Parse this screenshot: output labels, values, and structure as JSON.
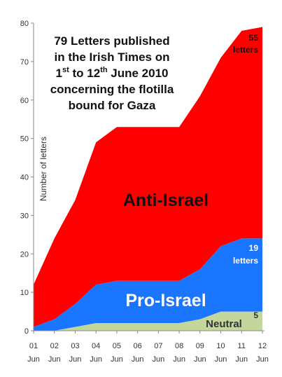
{
  "chart_data": {
    "type": "area",
    "stacked": true,
    "title_lines": [
      "79 Letters published",
      "in the Irish Times on",
      "1st to 12th June 2010",
      "concerning the flotilla",
      "bound for Gaza"
    ],
    "title_superscripts": {
      "line": 2,
      "parts": [
        "1",
        "st",
        " to 12",
        "th",
        " June 2010"
      ]
    },
    "ylabel": "Number of letters",
    "ylim": [
      0,
      80
    ],
    "yticks": [
      0,
      10,
      20,
      30,
      40,
      50,
      60,
      70,
      80
    ],
    "x_day": [
      "01",
      "02",
      "03",
      "04",
      "05",
      "06",
      "07",
      "08",
      "09",
      "10",
      "11",
      "12"
    ],
    "x_month": "Jun",
    "grid": false,
    "series": [
      {
        "name": "Neutral",
        "color": "#c3d69b",
        "values": [
          0,
          0,
          1,
          2,
          2,
          2,
          2,
          2,
          3,
          5,
          5,
          5
        ]
      },
      {
        "name": "Pro-Israel",
        "color": "#1a75ff",
        "values": [
          1,
          3,
          6,
          10,
          11,
          11,
          11,
          11,
          13,
          17,
          19,
          19
        ]
      },
      {
        "name": "Anti-Israel",
        "color": "#ff0000",
        "values": [
          11,
          21,
          27,
          37,
          40,
          40,
          40,
          40,
          45,
          49,
          54,
          55
        ]
      }
    ],
    "annotations": {
      "anti_count": "55",
      "anti_unit": "letters",
      "pro_count": "19",
      "pro_unit": "letters",
      "neutral_count": "5"
    }
  }
}
